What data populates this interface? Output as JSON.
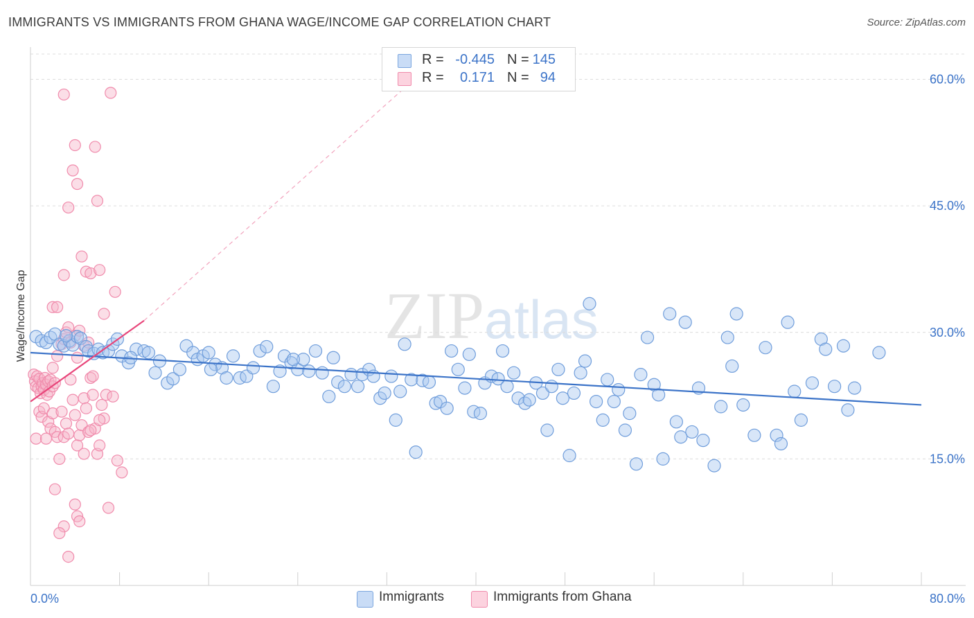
{
  "header": {
    "title": "IMMIGRANTS VS IMMIGRANTS FROM GHANA WAGE/INCOME GAP CORRELATION CHART",
    "source": "Source: ZipAtlas.com"
  },
  "watermark": {
    "zip": "ZIP",
    "atlas": "atlas"
  },
  "legend_top": {
    "rows": [
      {
        "r_label": "R =",
        "r_value": "-0.445",
        "n_label": "N =",
        "n_value": "145",
        "color": "#a9c8f0"
      },
      {
        "r_label": "R =",
        "r_value": "0.171",
        "n_label": "N =",
        "n_value": "94",
        "color": "#f7b6c9"
      }
    ]
  },
  "legend_bottom": {
    "items": [
      {
        "label": "Immigrants",
        "color": "#a9c8f0"
      },
      {
        "label": "Immigrants from Ghana",
        "color": "#f7b6c9"
      }
    ]
  },
  "chart_data": {
    "type": "scatter",
    "title": "IMMIGRANTS VS IMMIGRANTS FROM GHANA WAGE/INCOME GAP CORRELATION CHART",
    "xlabel": "",
    "ylabel": "Wage/Income Gap",
    "xlim": [
      0,
      80
    ],
    "ylim": [
      0,
      63
    ],
    "x_tick_labels": [
      "0.0%",
      "80.0%"
    ],
    "y_ticks": [
      15,
      30,
      45,
      60
    ],
    "y_tick_labels": [
      "15.0%",
      "30.0%",
      "45.0%",
      "60.0%"
    ],
    "grid": true,
    "colors": {
      "blue": "#3b73c8",
      "blue_fill": "#a9c8f0",
      "pink": "#e8457a",
      "pink_fill": "#f7b6c9",
      "axis_text": "#3b73c8"
    },
    "series": [
      {
        "name": "Immigrants",
        "r": -0.445,
        "n": 145,
        "trend": {
          "x0": 0,
          "y0": 27.6,
          "x1": 80,
          "y1": 21.4
        },
        "points": [
          [
            0.5,
            29.5
          ],
          [
            1.0,
            29.0
          ],
          [
            1.4,
            28.8
          ],
          [
            1.8,
            29.4
          ],
          [
            2.2,
            29.8
          ],
          [
            2.6,
            28.6
          ],
          [
            3.0,
            28.4
          ],
          [
            3.5,
            29.0
          ],
          [
            3.8,
            28.5
          ],
          [
            4.2,
            29.5
          ],
          [
            4.5,
            29.3
          ],
          [
            5.0,
            28.3
          ],
          [
            5.2,
            27.8
          ],
          [
            5.7,
            27.5
          ],
          [
            6.1,
            28.0
          ],
          [
            6.5,
            27.6
          ],
          [
            7.0,
            27.8
          ],
          [
            7.4,
            28.6
          ],
          [
            7.8,
            29.2
          ],
          [
            8.2,
            27.2
          ],
          [
            8.8,
            26.4
          ],
          [
            9.5,
            28.0
          ],
          [
            10.2,
            27.8
          ],
          [
            10.6,
            27.6
          ],
          [
            11.2,
            25.2
          ],
          [
            11.6,
            26.6
          ],
          [
            12.3,
            24.0
          ],
          [
            12.8,
            24.5
          ],
          [
            13.4,
            25.6
          ],
          [
            14.0,
            28.4
          ],
          [
            14.6,
            27.6
          ],
          [
            15.0,
            26.8
          ],
          [
            15.5,
            27.2
          ],
          [
            16.0,
            27.6
          ],
          [
            16.6,
            26.2
          ],
          [
            17.2,
            25.8
          ],
          [
            17.6,
            24.6
          ],
          [
            18.2,
            27.2
          ],
          [
            18.8,
            24.6
          ],
          [
            19.4,
            24.8
          ],
          [
            20.0,
            25.8
          ],
          [
            20.6,
            27.8
          ],
          [
            21.2,
            28.3
          ],
          [
            21.8,
            23.6
          ],
          [
            22.4,
            25.4
          ],
          [
            22.8,
            27.2
          ],
          [
            23.4,
            26.4
          ],
          [
            24.0,
            25.6
          ],
          [
            24.5,
            26.8
          ],
          [
            25.0,
            25.4
          ],
          [
            25.6,
            27.8
          ],
          [
            26.2,
            25.2
          ],
          [
            26.8,
            22.4
          ],
          [
            27.2,
            27.0
          ],
          [
            27.6,
            24.1
          ],
          [
            28.2,
            23.6
          ],
          [
            28.8,
            25.0
          ],
          [
            29.4,
            23.6
          ],
          [
            29.8,
            25.0
          ],
          [
            30.4,
            25.6
          ],
          [
            30.8,
            24.8
          ],
          [
            31.4,
            22.2
          ],
          [
            31.8,
            22.8
          ],
          [
            32.4,
            24.8
          ],
          [
            32.8,
            19.6
          ],
          [
            33.2,
            23.0
          ],
          [
            33.6,
            28.6
          ],
          [
            34.2,
            24.4
          ],
          [
            34.6,
            15.8
          ],
          [
            35.2,
            24.3
          ],
          [
            35.8,
            24.1
          ],
          [
            36.4,
            21.6
          ],
          [
            36.8,
            21.8
          ],
          [
            37.4,
            21.0
          ],
          [
            37.8,
            27.8
          ],
          [
            38.4,
            25.6
          ],
          [
            39.0,
            23.4
          ],
          [
            39.4,
            27.4
          ],
          [
            39.8,
            20.6
          ],
          [
            40.4,
            20.4
          ],
          [
            40.8,
            24.0
          ],
          [
            41.4,
            24.8
          ],
          [
            42.0,
            24.5
          ],
          [
            42.4,
            27.8
          ],
          [
            42.8,
            23.6
          ],
          [
            43.4,
            25.2
          ],
          [
            43.8,
            22.2
          ],
          [
            44.4,
            21.6
          ],
          [
            44.8,
            22.0
          ],
          [
            45.4,
            24.0
          ],
          [
            46.0,
            22.8
          ],
          [
            46.4,
            18.4
          ],
          [
            46.8,
            23.6
          ],
          [
            47.4,
            25.6
          ],
          [
            47.8,
            22.2
          ],
          [
            48.4,
            15.4
          ],
          [
            48.8,
            22.8
          ],
          [
            49.4,
            25.2
          ],
          [
            49.8,
            26.6
          ],
          [
            50.2,
            33.4
          ],
          [
            50.8,
            21.8
          ],
          [
            51.4,
            19.6
          ],
          [
            51.8,
            24.4
          ],
          [
            52.4,
            21.8
          ],
          [
            52.8,
            23.2
          ],
          [
            53.4,
            18.4
          ],
          [
            53.8,
            20.4
          ],
          [
            54.4,
            14.4
          ],
          [
            54.8,
            25.0
          ],
          [
            55.4,
            29.4
          ],
          [
            56.0,
            23.8
          ],
          [
            56.4,
            22.6
          ],
          [
            56.8,
            15.0
          ],
          [
            57.4,
            32.2
          ],
          [
            58.0,
            19.4
          ],
          [
            58.4,
            17.6
          ],
          [
            58.8,
            31.2
          ],
          [
            59.4,
            18.2
          ],
          [
            60.0,
            23.4
          ],
          [
            60.4,
            17.2
          ],
          [
            61.4,
            14.2
          ],
          [
            62.0,
            21.2
          ],
          [
            62.6,
            29.4
          ],
          [
            63.0,
            26.0
          ],
          [
            63.4,
            32.2
          ],
          [
            64.0,
            21.4
          ],
          [
            65.0,
            17.8
          ],
          [
            66.0,
            28.2
          ],
          [
            67.0,
            17.8
          ],
          [
            67.4,
            16.8
          ],
          [
            68.0,
            31.2
          ],
          [
            68.6,
            23.0
          ],
          [
            69.2,
            19.6
          ],
          [
            70.2,
            24.0
          ],
          [
            71.0,
            29.2
          ],
          [
            71.4,
            28.0
          ],
          [
            72.2,
            23.6
          ],
          [
            73.0,
            28.4
          ],
          [
            73.4,
            20.8
          ],
          [
            74.0,
            23.4
          ],
          [
            76.2,
            27.6
          ],
          [
            3.2,
            29.6
          ],
          [
            9.0,
            27.0
          ],
          [
            16.2,
            25.6
          ],
          [
            23.6,
            26.8
          ]
        ]
      },
      {
        "name": "Immigrants from Ghana",
        "r": 0.171,
        "n": 94,
        "trend_solid": {
          "x0": 0,
          "y0": 21.8,
          "x1": 10.2,
          "y1": 31.4
        },
        "trend_dashed": {
          "x0": 10.2,
          "y0": 31.4,
          "x1": 37,
          "y1": 63
        },
        "points": [
          [
            0.3,
            25.0
          ],
          [
            0.4,
            24.2
          ],
          [
            0.5,
            23.6
          ],
          [
            0.6,
            24.8
          ],
          [
            0.7,
            23.4
          ],
          [
            0.8,
            24.5
          ],
          [
            0.9,
            22.8
          ],
          [
            1.0,
            23.6
          ],
          [
            1.1,
            24.0
          ],
          [
            1.2,
            23.2
          ],
          [
            1.3,
            24.6
          ],
          [
            1.4,
            23.8
          ],
          [
            1.5,
            22.6
          ],
          [
            1.6,
            24.2
          ],
          [
            1.7,
            23.0
          ],
          [
            1.8,
            24.4
          ],
          [
            2.0,
            23.6
          ],
          [
            2.2,
            24.0
          ],
          [
            0.5,
            17.4
          ],
          [
            0.8,
            20.6
          ],
          [
            1.0,
            20.0
          ],
          [
            1.2,
            21.0
          ],
          [
            1.4,
            17.4
          ],
          [
            1.6,
            19.4
          ],
          [
            1.8,
            18.6
          ],
          [
            2.0,
            20.4
          ],
          [
            2.2,
            18.2
          ],
          [
            2.4,
            17.6
          ],
          [
            2.6,
            15.0
          ],
          [
            2.8,
            20.6
          ],
          [
            3.0,
            17.6
          ],
          [
            3.2,
            19.2
          ],
          [
            3.4,
            18.0
          ],
          [
            3.6,
            24.4
          ],
          [
            3.8,
            22.0
          ],
          [
            4.0,
            20.2
          ],
          [
            4.2,
            16.6
          ],
          [
            4.4,
            17.8
          ],
          [
            4.6,
            19.0
          ],
          [
            4.8,
            22.2
          ],
          [
            5.0,
            21.0
          ],
          [
            5.2,
            18.2
          ],
          [
            5.4,
            24.6
          ],
          [
            5.6,
            22.6
          ],
          [
            5.8,
            18.6
          ],
          [
            6.0,
            15.6
          ],
          [
            6.2,
            16.6
          ],
          [
            6.4,
            21.4
          ],
          [
            6.6,
            19.8
          ],
          [
            6.8,
            22.6
          ],
          [
            2.0,
            25.8
          ],
          [
            2.4,
            27.2
          ],
          [
            2.8,
            28.6
          ],
          [
            3.0,
            29.2
          ],
          [
            3.2,
            30.0
          ],
          [
            3.4,
            30.6
          ],
          [
            3.6,
            28.8
          ],
          [
            4.0,
            29.6
          ],
          [
            4.2,
            27.0
          ],
          [
            4.4,
            30.2
          ],
          [
            4.8,
            28.4
          ],
          [
            5.2,
            28.8
          ],
          [
            5.6,
            24.8
          ],
          [
            2.0,
            33.0
          ],
          [
            3.0,
            36.8
          ],
          [
            3.4,
            44.8
          ],
          [
            3.8,
            49.2
          ],
          [
            4.0,
            52.2
          ],
          [
            4.2,
            47.6
          ],
          [
            4.6,
            39.0
          ],
          [
            5.0,
            37.2
          ],
          [
            5.4,
            37.0
          ],
          [
            5.8,
            52.0
          ],
          [
            6.0,
            45.6
          ],
          [
            6.2,
            37.4
          ],
          [
            6.6,
            32.2
          ],
          [
            7.6,
            34.8
          ],
          [
            3.0,
            58.2
          ],
          [
            7.2,
            58.4
          ],
          [
            2.2,
            11.4
          ],
          [
            3.0,
            7.0
          ],
          [
            3.4,
            3.4
          ],
          [
            4.0,
            9.6
          ],
          [
            4.2,
            8.2
          ],
          [
            4.4,
            7.6
          ],
          [
            2.6,
            6.2
          ],
          [
            7.0,
            9.2
          ],
          [
            7.4,
            22.4
          ],
          [
            7.8,
            14.8
          ],
          [
            8.2,
            13.4
          ],
          [
            4.8,
            15.6
          ],
          [
            5.4,
            18.4
          ],
          [
            6.2,
            19.6
          ],
          [
            2.4,
            33.0
          ]
        ]
      }
    ]
  }
}
